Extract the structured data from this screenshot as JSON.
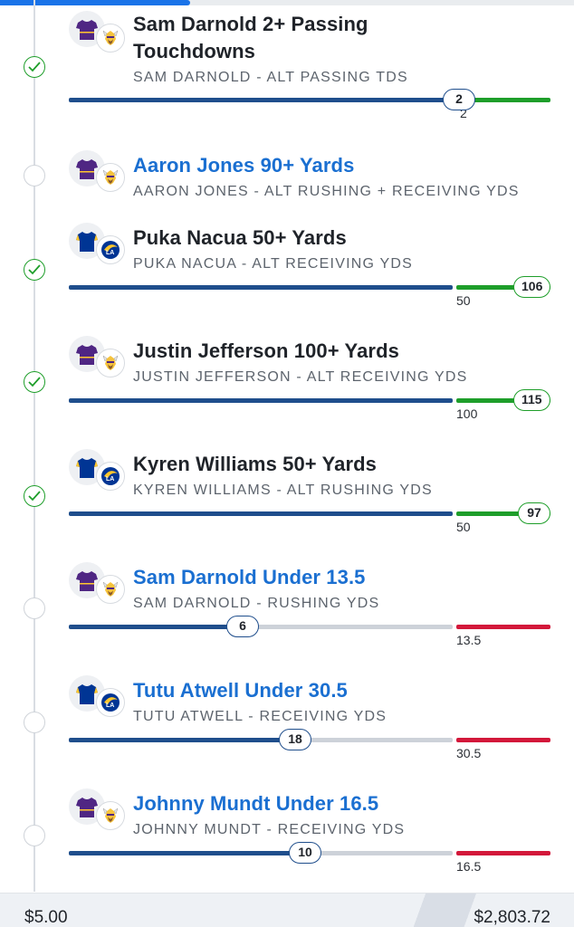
{
  "legs": [
    {
      "id": "leg1",
      "status": "won",
      "team": "vikings",
      "title": "Sam Darnold 2+ Passing Touchdowns",
      "subtitle": "SAM DARNOLD - ALT PASSING TDS",
      "bar": {
        "style": "over",
        "progress_value": "2",
        "line_value": "2",
        "progress_fraction": 0.81,
        "line_fraction": 0.81
      }
    },
    {
      "id": "leg2",
      "status": "pending",
      "team": "vikings",
      "title": "Aaron Jones 90+ Yards",
      "subtitle": "AARON JONES - ALT RUSHING + RECEIVING YDS",
      "bar": null
    },
    {
      "id": "leg3",
      "status": "won",
      "team": "rams",
      "title": "Puka Nacua 50+ Yards",
      "subtitle": "PUKA NACUA - ALT RECEIVING YDS",
      "bar": {
        "style": "over",
        "progress_value": "106",
        "line_value": "50",
        "progress_fraction": 1.0,
        "line_fraction": 0.8
      }
    },
    {
      "id": "leg4",
      "status": "won",
      "team": "vikings",
      "title": "Justin Jefferson 100+ Yards",
      "subtitle": "JUSTIN JEFFERSON - ALT RECEIVING YDS",
      "bar": {
        "style": "over",
        "progress_value": "115",
        "line_value": "100",
        "progress_fraction": 0.98,
        "line_fraction": 0.8
      }
    },
    {
      "id": "leg5",
      "status": "won",
      "team": "rams",
      "title": "Kyren Williams 50+ Yards",
      "subtitle": "KYREN WILLIAMS - ALT RUSHING YDS",
      "bar": {
        "style": "over",
        "progress_value": "97",
        "line_value": "50",
        "progress_fraction": 0.97,
        "line_fraction": 0.8
      }
    },
    {
      "id": "leg6",
      "status": "pending",
      "team": "vikings",
      "title": "Sam Darnold Under 13.5",
      "subtitle": "SAM DARNOLD - RUSHING YDS",
      "bar": {
        "style": "under",
        "progress_value": "6",
        "line_value": "13.5",
        "progress_fraction": 0.36,
        "line_fraction": 0.8
      }
    },
    {
      "id": "leg7",
      "status": "pending",
      "team": "rams",
      "title": "Tutu Atwell Under 30.5",
      "subtitle": "TUTU ATWELL - RECEIVING YDS",
      "bar": {
        "style": "under",
        "progress_value": "18",
        "line_value": "30.5",
        "progress_fraction": 0.47,
        "line_fraction": 0.8
      }
    },
    {
      "id": "leg8",
      "status": "pending",
      "team": "vikings",
      "title": "Johnny Mundt Under 16.5",
      "subtitle": "JOHNNY MUNDT - RECEIVING YDS",
      "bar": {
        "style": "under",
        "progress_value": "10",
        "line_value": "16.5",
        "progress_fraction": 0.49,
        "line_fraction": 0.8
      }
    }
  ],
  "footer": {
    "stake": "$5.00",
    "payout": "$2,803.72"
  },
  "colors": {
    "won": "#1e9e2a",
    "pending_title": "#1a6fd1",
    "bar_blue": "#1f4e8c",
    "bar_red": "#d3183a",
    "bar_gray": "#cdd2d9",
    "vikings_purple": "#4f2683",
    "rams_blue": "#003594",
    "rams_gold": "#ffc72c"
  },
  "icons": {
    "won": "check-circle-icon",
    "pending": "empty-circle-icon",
    "vikings": "vikings-logo-icon",
    "rams": "rams-logo-icon",
    "jersey": "jersey-icon"
  }
}
